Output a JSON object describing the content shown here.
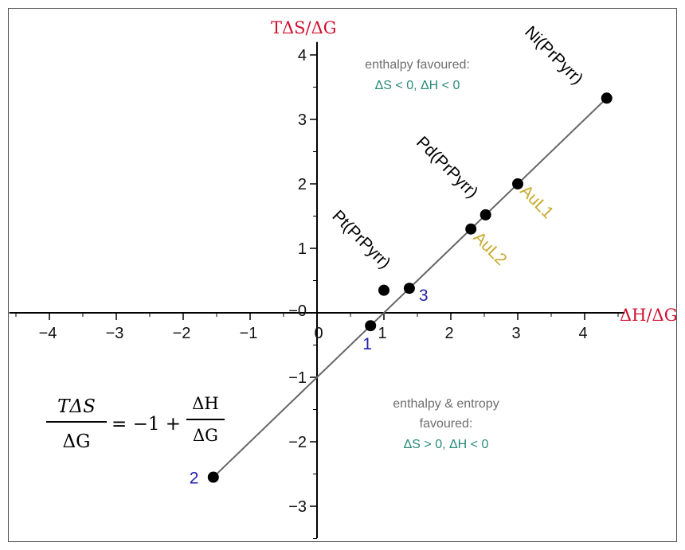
{
  "chart_data": {
    "type": "scatter",
    "title": "",
    "xlabel": "ΔH/ΔG",
    "ylabel": "TΔS/ΔG",
    "xlim": [
      -4.6,
      4.6
    ],
    "ylim": [
      -3.7,
      4.2
    ],
    "x_ticks": [
      -4,
      -3,
      -2,
      -1,
      0,
      1,
      2,
      3,
      4
    ],
    "y_ticks": [
      -3,
      -2,
      -1,
      0,
      1,
      2,
      3,
      4
    ],
    "x_tick_labels": [
      "−4",
      "−3",
      "−2",
      "−1",
      "0",
      "1",
      "2",
      "3",
      "4"
    ],
    "y_tick_labels": [
      "−3",
      "−2",
      "−1",
      "−0",
      "1",
      "2",
      "3",
      "4"
    ],
    "grid": false,
    "fit_line": {
      "x0": -1.55,
      "x1": 4.35,
      "slope": 1,
      "intercept": -1
    },
    "points": [
      {
        "x": 4.33,
        "y": 3.33,
        "label": "Ni(PrPyrr)",
        "color": "#000000"
      },
      {
        "x": 3.0,
        "y": 2.0,
        "label": "AuL1",
        "color": "#c8a92b"
      },
      {
        "x": 2.52,
        "y": 1.52,
        "label": "Pd(PrPyrr)",
        "color": "#000000"
      },
      {
        "x": 2.3,
        "y": 1.3,
        "label": "AuL2",
        "color": "#c8a92b"
      },
      {
        "x": 1.38,
        "y": 0.38,
        "label": "3",
        "color": "#2222aa"
      },
      {
        "x": 1.0,
        "y": 0.35,
        "label": "Pt(PrPyrr)",
        "color": "#000000"
      },
      {
        "x": 0.8,
        "y": -0.2,
        "label": "1",
        "color": "#2222aa"
      },
      {
        "x": -1.55,
        "y": -2.55,
        "label": "2",
        "color": "#2222aa"
      }
    ],
    "annotations": {
      "top_line1": "enthalpy favoured:",
      "top_line2": "ΔS < 0, ΔH < 0",
      "bottom_line1": "enthalpy & entropy",
      "bottom_line2": "favoured:",
      "bottom_line3": "ΔS > 0, ΔH < 0"
    },
    "equation": {
      "lhs_num": "TΔS",
      "lhs_den": "ΔG",
      "mid": "= −1 +",
      "rhs_num": "ΔH",
      "rhs_den": "ΔG"
    }
  },
  "colors": {
    "axis_title": "#d0102f",
    "annotation_gray": "#6e6e6e",
    "annotation_teal": "#2a8a7a",
    "line": "#666666"
  }
}
